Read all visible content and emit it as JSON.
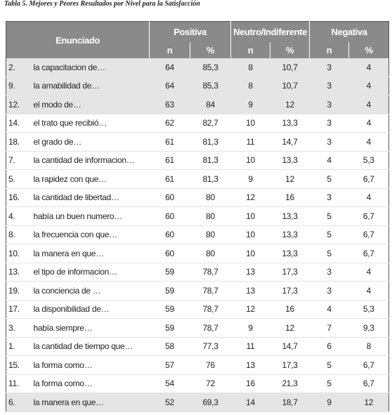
{
  "caption": "Tabla 5.  Mejores y Peores Resultados por Nivel para la Satisfacción",
  "table": {
    "header": {
      "enunciado": "Enunciado",
      "groups": [
        "Positiva",
        "Neutro/Indiferente",
        "Negativa"
      ],
      "sub": [
        "n",
        "%",
        "n",
        "%",
        "n",
        "%"
      ]
    },
    "rows": [
      [
        "2.",
        "la capacitacion de…",
        "64",
        "85,3",
        "8",
        "10,7",
        "3",
        "4"
      ],
      [
        "9.",
        "la amabilidad de…",
        "64",
        "85,3",
        "8",
        "10,7",
        "3",
        "4"
      ],
      [
        "12.",
        "el modo de…",
        "63",
        "84",
        "9",
        "12",
        "3",
        "4"
      ],
      [
        "14.",
        "el trato que recibió…",
        "62",
        "82,7",
        "10",
        "13,3",
        "3",
        "4"
      ],
      [
        "18.",
        "el grado de…",
        "61",
        "81,3",
        "11",
        "14,7",
        "3",
        "4"
      ],
      [
        "7.",
        "la cantidad de informacion…",
        "61",
        "81,3",
        "10",
        "13,3",
        "4",
        "5,3"
      ],
      [
        "5.",
        "la rapidez con que…",
        "61",
        "81,3",
        "9",
        "12",
        "5",
        "6,7"
      ],
      [
        "16.",
        "la cantidad de libertad…",
        "60",
        "80",
        "12",
        "16",
        "3",
        "4"
      ],
      [
        "4.",
        "había un buen numero…",
        "60",
        "80",
        "10",
        "13,3",
        "5",
        "6,7"
      ],
      [
        "8.",
        "la frecuencia con que…",
        "60",
        "80",
        "10",
        "13,3",
        "5",
        "6,7"
      ],
      [
        "10.",
        "la manera en que…",
        "60",
        "80",
        "10",
        "13,3",
        "5",
        "6,7"
      ],
      [
        "13.",
        "el tipo de informacion…",
        "59",
        "78,7",
        "13",
        "17,3",
        "3",
        "4"
      ],
      [
        "19.",
        "la conciencia de …",
        "59",
        "78,7",
        "13",
        "17,3",
        "3",
        "4"
      ],
      [
        "17.",
        "la disponibilidad de…",
        "59",
        "78,7",
        "12",
        "16",
        "4",
        "5,3"
      ],
      [
        "3.",
        "había siempre…",
        "59",
        "78,7",
        "9",
        "12",
        "7",
        "9,3"
      ],
      [
        "1.",
        "la cantidad de tiempo que…",
        "58",
        "77,3",
        "11",
        "14,7",
        "6",
        "8"
      ],
      [
        "15.",
        "la forma como…",
        "57",
        "76",
        "13",
        "17,3",
        "5",
        "6,7"
      ],
      [
        "11.",
        "la forma como…",
        "54",
        "72",
        "16",
        "21,3",
        "5",
        "6,7"
      ],
      [
        "6.",
        "la manera en que…",
        "52",
        "69,3",
        "14",
        "18,7",
        "9",
        "12"
      ]
    ]
  }
}
